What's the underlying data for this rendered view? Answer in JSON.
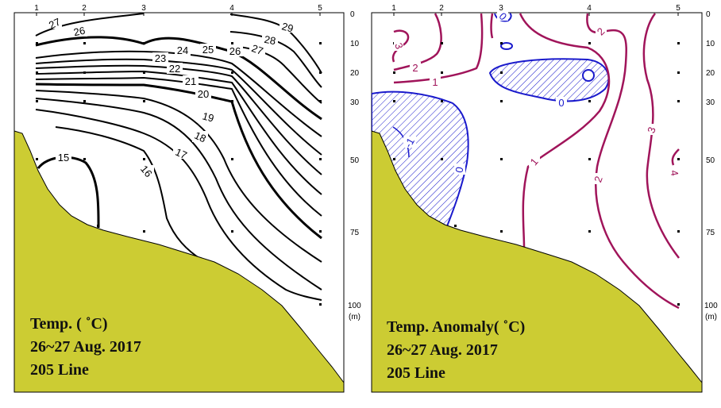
{
  "colors": {
    "land": "#cccc33",
    "positive": "#a0145a",
    "negative": "#1a1acc",
    "contour": "#000000"
  },
  "stations": [
    "1",
    "2",
    "3",
    "4",
    "5"
  ],
  "depths": [
    "0",
    "10",
    "20",
    "30",
    "50",
    "75",
    "100",
    "(m)"
  ],
  "left_panel": {
    "title": [
      "Temp. ( ˚C)",
      "26~27 Aug. 2017",
      "205 Line"
    ],
    "contour_labels": [
      "27",
      "26",
      "29",
      "28",
      "24",
      "25",
      "26",
      "27",
      "23",
      "22",
      "21",
      "20",
      "19",
      "18",
      "17",
      "16",
      "15"
    ]
  },
  "right_panel": {
    "title": [
      "Temp. Anomaly( ˚C)",
      "26~27 Aug. 2017",
      "205 Line"
    ],
    "contour_labels": [
      "3",
      "2",
      "1",
      "0",
      "2",
      "0",
      "-1",
      "0",
      "1",
      "2",
      "3",
      "4"
    ]
  }
}
